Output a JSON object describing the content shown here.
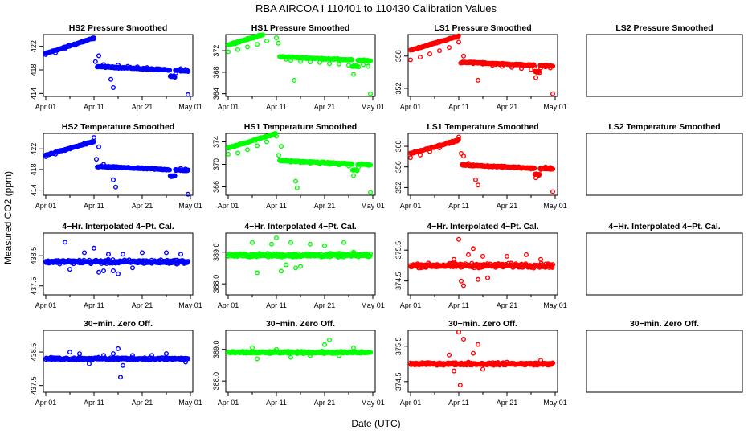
{
  "figure": {
    "title": "RBA   AIRCOA I   110401 to 110430   Calibration Values",
    "ylabel": "Measured CO2 (ppm)",
    "xlabel": "Date (UTC)",
    "x_ticks": [
      {
        "label": "Apr 01",
        "day": 0
      },
      {
        "label": "Apr 11",
        "day": 10
      },
      {
        "label": "Apr 21",
        "day": 20
      },
      {
        "label": "May 01",
        "day": 30
      }
    ],
    "x_minor_ticks": [
      5,
      15,
      25
    ],
    "xlim": [
      0,
      30
    ],
    "colors": {
      "hs2": "#0000ff",
      "hs1": "#00ff00",
      "ls1": "#ff0000",
      "frame": "#000000"
    }
  },
  "chart_data": [
    {
      "id": "p00",
      "type": "scatter",
      "title": "HS2 Pressure Smoothed",
      "series_color": "hs2",
      "kind": "press",
      "base": 418.2,
      "ylim": [
        413.5,
        424.0
      ],
      "y_ticks": [
        {
          "v": 414,
          "label": "414"
        },
        {
          "v": 418,
          "label": "418"
        },
        {
          "v": 422,
          "label": "422"
        }
      ],
      "points": [
        [
          0,
          420.6
        ],
        [
          2,
          420.9
        ],
        [
          4,
          421.6
        ],
        [
          6,
          422.2
        ],
        [
          8,
          422.8
        ],
        [
          10,
          423.3
        ],
        [
          10.3,
          419.4
        ],
        [
          11,
          420.4
        ],
        [
          12,
          418.9
        ],
        [
          13,
          418.6
        ],
        [
          13.5,
          416.4
        ],
        [
          14,
          415.0
        ],
        [
          15,
          418.8
        ],
        [
          17,
          418.6
        ],
        [
          19,
          418.5
        ],
        [
          21,
          418.4
        ],
        [
          23,
          418.2
        ],
        [
          25,
          418.0
        ],
        [
          26,
          416.9
        ],
        [
          27,
          417.5
        ],
        [
          28,
          418.2
        ],
        [
          29,
          418.1
        ],
        [
          29.5,
          413.8
        ]
      ]
    },
    {
      "id": "p01",
      "type": "scatter",
      "title": "HS1 Pressure Smoothed",
      "series_color": "hs1",
      "kind": "press",
      "base": 370.5,
      "ylim": [
        363.5,
        375.0
      ],
      "y_ticks": [
        {
          "v": 364,
          "label": "364"
        },
        {
          "v": 368,
          "label": "368"
        },
        {
          "v": 372,
          "label": "372"
        }
      ],
      "points": [
        [
          0,
          371.8
        ],
        [
          2,
          372.2
        ],
        [
          4,
          372.7
        ],
        [
          6,
          373.2
        ],
        [
          8,
          373.8
        ],
        [
          10,
          374.4
        ],
        [
          10.4,
          373.4
        ],
        [
          11,
          370.8
        ],
        [
          12,
          370.4
        ],
        [
          13,
          370.2
        ],
        [
          13.7,
          366.5
        ],
        [
          15,
          370.0
        ],
        [
          17,
          369.9
        ],
        [
          19,
          369.8
        ],
        [
          21,
          369.6
        ],
        [
          23,
          369.5
        ],
        [
          25,
          369.3
        ],
        [
          26,
          367.6
        ],
        [
          27,
          369.0
        ],
        [
          28,
          369.4
        ],
        [
          29,
          369.1
        ],
        [
          29.5,
          364.0
        ]
      ]
    },
    {
      "id": "p02",
      "type": "scatter",
      "title": "LS1 Pressure Smoothed",
      "series_color": "ls1",
      "kind": "press",
      "base": 356.5,
      "ylim": [
        350.5,
        362.0
      ],
      "y_ticks": [
        {
          "v": 352,
          "label": "352"
        },
        {
          "v": 358,
          "label": "358"
        }
      ],
      "points": [
        [
          0,
          357.3
        ],
        [
          2,
          357.8
        ],
        [
          4,
          358.4
        ],
        [
          6,
          359.0
        ],
        [
          8,
          359.6
        ],
        [
          10,
          360.6
        ],
        [
          10.4,
          356.7
        ],
        [
          11,
          358.0
        ],
        [
          12,
          356.8
        ],
        [
          13,
          356.6
        ],
        [
          14,
          353.5
        ],
        [
          15,
          356.5
        ],
        [
          17,
          356.3
        ],
        [
          19,
          356.1
        ],
        [
          21,
          355.9
        ],
        [
          23,
          355.7
        ],
        [
          25,
          355.5
        ],
        [
          26,
          354.0
        ],
        [
          27,
          355.8
        ],
        [
          28,
          356.0
        ],
        [
          29,
          355.8
        ],
        [
          29.5,
          351.0
        ]
      ]
    },
    {
      "id": "p03",
      "type": "scatter",
      "title": "LS2 Pressure Smoothed",
      "empty": true,
      "ylim": [
        0,
        1
      ],
      "y_ticks": [],
      "points": []
    },
    {
      "id": "p10",
      "type": "scatter",
      "title": "HS2 Temperature Smoothed",
      "series_color": "hs2",
      "kind": "temp",
      "base": 418.2,
      "ylim": [
        413.0,
        425.0
      ],
      "y_ticks": [
        {
          "v": 414,
          "label": "414"
        },
        {
          "v": 418,
          "label": "418"
        },
        {
          "v": 422,
          "label": "422"
        }
      ],
      "points": [
        [
          0,
          420.5
        ],
        [
          2,
          421.0
        ],
        [
          4,
          421.7
        ],
        [
          6,
          422.4
        ],
        [
          8,
          423.1
        ],
        [
          10,
          424.2
        ],
        [
          10.5,
          420.0
        ],
        [
          11,
          422.4
        ],
        [
          12,
          419.0
        ],
        [
          13,
          418.6
        ],
        [
          14,
          416.0
        ],
        [
          14.5,
          414.6
        ],
        [
          15,
          418.5
        ],
        [
          17,
          418.4
        ],
        [
          19,
          418.3
        ],
        [
          21,
          418.2
        ],
        [
          23,
          418.1
        ],
        [
          25,
          417.9
        ],
        [
          26,
          416.6
        ],
        [
          27,
          417.8
        ],
        [
          28,
          418.2
        ],
        [
          29,
          418.1
        ],
        [
          29.5,
          413.2
        ]
      ]
    },
    {
      "id": "p11",
      "type": "scatter",
      "title": "HS1 Temperature Smoothed",
      "series_color": "hs1",
      "kind": "temp",
      "base": 370.3,
      "ylim": [
        364.5,
        375.5
      ],
      "y_ticks": [
        {
          "v": 366,
          "label": "366"
        },
        {
          "v": 370,
          "label": "370"
        },
        {
          "v": 374,
          "label": "374"
        }
      ],
      "points": [
        [
          0,
          371.8
        ],
        [
          2,
          372.0
        ],
        [
          4,
          372.6
        ],
        [
          6,
          373.3
        ],
        [
          8,
          374.0
        ],
        [
          10,
          375.0
        ],
        [
          10.5,
          371.6
        ],
        [
          11,
          373.2
        ],
        [
          12,
          370.8
        ],
        [
          13,
          370.4
        ],
        [
          14,
          367.0
        ],
        [
          14.3,
          365.8
        ],
        [
          15,
          370.3
        ],
        [
          17,
          370.2
        ],
        [
          19,
          370.1
        ],
        [
          21,
          370.0
        ],
        [
          23,
          369.9
        ],
        [
          25,
          369.7
        ],
        [
          26,
          368.0
        ],
        [
          27,
          369.5
        ],
        [
          28,
          370.0
        ],
        [
          29,
          369.9
        ],
        [
          29.5,
          365.0
        ]
      ]
    },
    {
      "id": "p12",
      "type": "scatter",
      "title": "LS1 Temperature Smoothed",
      "series_color": "ls1",
      "kind": "temp",
      "base": 356.0,
      "ylim": [
        350.5,
        362.5
      ],
      "y_ticks": [
        {
          "v": 352,
          "label": "352"
        },
        {
          "v": 356,
          "label": "356"
        },
        {
          "v": 360,
          "label": "360"
        }
      ],
      "points": [
        [
          0,
          357.8
        ],
        [
          2,
          358.3
        ],
        [
          4,
          359.0
        ],
        [
          6,
          359.7
        ],
        [
          8,
          360.5
        ],
        [
          10,
          361.8
        ],
        [
          10.5,
          358.6
        ],
        [
          11,
          358.1
        ],
        [
          12,
          356.7
        ],
        [
          13,
          356.4
        ],
        [
          13.5,
          353.5
        ],
        [
          14,
          352.5
        ],
        [
          15,
          356.2
        ],
        [
          17,
          356.0
        ],
        [
          19,
          355.8
        ],
        [
          21,
          355.8
        ],
        [
          23,
          355.7
        ],
        [
          25,
          355.6
        ],
        [
          26,
          353.9
        ],
        [
          27,
          355.5
        ],
        [
          28,
          356.0
        ],
        [
          29,
          355.9
        ],
        [
          29.5,
          351.2
        ]
      ]
    },
    {
      "id": "p13",
      "type": "scatter",
      "title": "LS2 Temperature Smoothed",
      "empty": true,
      "ylim": [
        0,
        1
      ],
      "y_ticks": [],
      "points": []
    },
    {
      "id": "p20",
      "type": "scatter",
      "title": "4−Hr. Interpolated 4−Pt. Cal.",
      "series_color": "hs2",
      "kind": "noise",
      "base": 438.3,
      "spread": 0.09,
      "ylim": [
        437.2,
        439.25
      ],
      "y_ticks": [
        {
          "v": 437.5,
          "label": "437.5"
        },
        {
          "v": 438.5,
          "label": "438.5"
        }
      ],
      "points": [
        [
          4,
          438.95
        ],
        [
          5,
          438.05
        ],
        [
          8,
          438.6
        ],
        [
          10,
          438.75
        ],
        [
          11,
          437.95
        ],
        [
          12,
          438.0
        ],
        [
          13,
          438.55
        ],
        [
          14,
          438.0
        ],
        [
          15,
          437.9
        ],
        [
          16,
          438.55
        ],
        [
          18,
          438.1
        ],
        [
          20,
          438.6
        ],
        [
          22,
          438.25
        ],
        [
          25,
          438.6
        ],
        [
          28,
          438.55
        ],
        [
          29,
          438.3
        ]
      ]
    },
    {
      "id": "p21",
      "type": "scatter",
      "title": "4−Hr. Interpolated 4−Pt. Cal.",
      "series_color": "hs1",
      "kind": "noise",
      "base": 388.9,
      "spread": 0.08,
      "ylim": [
        387.65,
        389.6
      ],
      "y_ticks": [
        {
          "v": 388.0,
          "label": "388.0"
        },
        {
          "v": 389.0,
          "label": "389.0"
        }
      ],
      "points": [
        [
          5,
          389.3
        ],
        [
          6,
          388.35
        ],
        [
          9,
          389.25
        ],
        [
          10,
          389.45
        ],
        [
          11,
          388.4
        ],
        [
          12,
          388.6
        ],
        [
          13,
          389.3
        ],
        [
          14,
          388.5
        ],
        [
          15,
          388.55
        ],
        [
          17,
          389.25
        ],
        [
          20,
          389.2
        ],
        [
          24,
          389.3
        ],
        [
          26,
          389.0
        ]
      ]
    },
    {
      "id": "p22",
      "type": "scatter",
      "title": "4−Hr. Interpolated 4−Pt. Cal.",
      "series_color": "ls1",
      "kind": "noise",
      "base": 375.0,
      "spread": 0.1,
      "ylim": [
        374.05,
        376.05
      ],
      "y_ticks": [
        {
          "v": 374.5,
          "label": "374.5"
        },
        {
          "v": 375.5,
          "label": "375.5"
        }
      ],
      "points": [
        [
          9,
          375.2
        ],
        [
          10,
          375.85
        ],
        [
          10.5,
          374.5
        ],
        [
          11,
          374.35
        ],
        [
          12,
          375.35
        ],
        [
          13,
          375.55
        ],
        [
          14,
          374.55
        ],
        [
          15,
          375.3
        ],
        [
          16,
          374.6
        ],
        [
          20,
          375.3
        ],
        [
          24,
          375.35
        ],
        [
          27,
          375.2
        ]
      ]
    },
    {
      "id": "p23",
      "type": "scatter",
      "title": "4−Hr. Interpolated 4−Pt. Cal.",
      "empty": true,
      "ylim": [
        0,
        1
      ],
      "y_ticks": [],
      "points": []
    },
    {
      "id": "p30",
      "type": "scatter",
      "title": "30−min. Zero Off.",
      "series_color": "hs2",
      "kind": "noise",
      "base": 438.3,
      "spread": 0.05,
      "ylim": [
        437.3,
        439.15
      ],
      "y_ticks": [
        {
          "v": 437.5,
          "label": "437.5"
        },
        {
          "v": 438.5,
          "label": "438.5"
        }
      ],
      "points": [
        [
          5,
          438.5
        ],
        [
          7,
          438.45
        ],
        [
          9,
          438.15
        ],
        [
          12,
          438.4
        ],
        [
          14,
          438.45
        ],
        [
          15,
          438.6
        ],
        [
          16,
          438.1
        ],
        [
          15.5,
          437.75
        ],
        [
          18,
          438.4
        ],
        [
          22,
          438.4
        ],
        [
          25,
          438.45
        ],
        [
          29,
          438.2
        ]
      ]
    },
    {
      "id": "p31",
      "type": "scatter",
      "title": "30−min. Zero Off.",
      "series_color": "hs1",
      "kind": "noise",
      "base": 388.9,
      "spread": 0.05,
      "ylim": [
        387.65,
        389.6
      ],
      "y_ticks": [
        {
          "v": 388.0,
          "label": "388.0"
        },
        {
          "v": 389.0,
          "label": "389.0"
        }
      ],
      "points": [
        [
          5,
          389.05
        ],
        [
          6,
          388.7
        ],
        [
          10,
          389.0
        ],
        [
          13,
          388.75
        ],
        [
          17,
          388.8
        ],
        [
          20,
          389.15
        ],
        [
          21,
          389.3
        ],
        [
          23,
          388.8
        ],
        [
          26,
          389.05
        ]
      ]
    },
    {
      "id": "p32",
      "type": "scatter",
      "title": "30−min. Zero Off.",
      "series_color": "ls1",
      "kind": "noise",
      "base": 375.0,
      "spread": 0.05,
      "ylim": [
        374.2,
        375.95
      ],
      "y_ticks": [
        {
          "v": 374.5,
          "label": "374.5"
        },
        {
          "v": 375.5,
          "label": "375.5"
        }
      ],
      "points": [
        [
          8,
          375.25
        ],
        [
          9,
          374.8
        ],
        [
          10,
          375.9
        ],
        [
          10.3,
          374.4
        ],
        [
          11,
          375.7
        ],
        [
          12,
          375.05
        ],
        [
          13,
          375.3
        ],
        [
          14,
          375.55
        ],
        [
          15,
          374.85
        ],
        [
          20,
          375.05
        ],
        [
          27,
          375.1
        ]
      ]
    },
    {
      "id": "p33",
      "type": "scatter",
      "title": "30−min. Zero Off.",
      "empty": true,
      "ylim": [
        0,
        1
      ],
      "y_ticks": [],
      "points": []
    }
  ]
}
